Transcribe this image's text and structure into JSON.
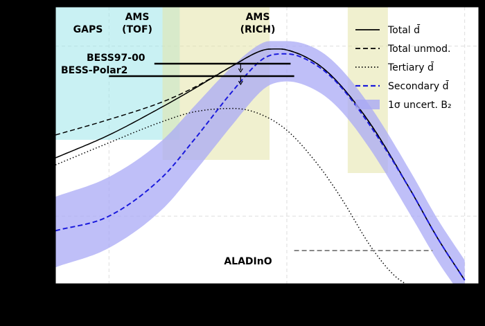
{
  "chart_data": {
    "type": "line",
    "title": "",
    "xlabel": "",
    "ylabel": "",
    "xscale": "log",
    "yscale": "log",
    "grid": true,
    "legend_placement": "top-right",
    "series": [
      {
        "name": "Total d̄",
        "style": "solid",
        "color": "#000000",
        "x": [
          0.05,
          0.1,
          0.2,
          0.3,
          0.5,
          0.7,
          0.8,
          1.0,
          1.5,
          2,
          3,
          5,
          7,
          10
        ],
        "y": [
          0.22,
          0.3,
          0.44,
          0.56,
          0.77,
          0.93,
          0.96,
          0.95,
          0.78,
          0.59,
          0.34,
          0.14,
          0.075,
          0.042
        ]
      },
      {
        "name": "Total unmod.",
        "style": "dashed",
        "color": "#000000",
        "x": [
          0.05,
          0.1,
          0.2,
          0.3,
          0.5,
          0.7,
          0.8,
          1.0,
          1.5,
          2,
          3,
          5,
          7,
          10
        ],
        "y": [
          0.3,
          0.37,
          0.47,
          0.57,
          0.77,
          0.93,
          0.96,
          0.95,
          0.78,
          0.59,
          0.34,
          0.14,
          0.075,
          0.042
        ]
      },
      {
        "name": "Tertiary d̄",
        "style": "dotted",
        "color": "#000000",
        "x": [
          0.05,
          0.1,
          0.2,
          0.3,
          0.5,
          0.7,
          1.0,
          1.5,
          2,
          3,
          4,
          5
        ],
        "y": [
          0.2,
          0.27,
          0.36,
          0.41,
          0.43,
          0.4,
          0.32,
          0.2,
          0.13,
          0.065,
          0.045,
          0.038
        ]
      },
      {
        "name": "Secondary d̄",
        "style": "dashed",
        "color": "#1a1adc",
        "x": [
          0.05,
          0.1,
          0.2,
          0.3,
          0.5,
          0.7,
          0.8,
          1.0,
          1.5,
          2,
          3,
          5,
          7,
          10
        ],
        "y": [
          0.082,
          0.1,
          0.17,
          0.28,
          0.55,
          0.81,
          0.88,
          0.9,
          0.76,
          0.58,
          0.33,
          0.14,
          0.075,
          0.042
        ]
      }
    ],
    "band": {
      "name": "1σ uncert. B₂",
      "color": "#a9a9f5",
      "x": [
        0.05,
        0.1,
        0.2,
        0.3,
        0.5,
        0.7,
        0.8,
        1.0,
        1.5,
        2,
        3,
        5,
        7,
        10
      ],
      "lower": [
        0.05,
        0.065,
        0.11,
        0.18,
        0.35,
        0.53,
        0.59,
        0.62,
        0.54,
        0.42,
        0.24,
        0.1,
        0.055,
        0.032
      ],
      "upper": [
        0.13,
        0.17,
        0.28,
        0.44,
        0.77,
        1.02,
        1.07,
        1.07,
        0.95,
        0.74,
        0.43,
        0.18,
        0.097,
        0.055
      ]
    },
    "regions": [
      {
        "label": "GAPS",
        "color": "#9ce6ea",
        "xmin": 0.05,
        "xmax": 0.25
      },
      {
        "label": "AMS\n(TOF)",
        "color": "#e4e4a8",
        "xmin": 0.2,
        "xmax": 0.8
      },
      {
        "label": "AMS\n(RICH)",
        "color": "#e4e4a8",
        "xmin": 2.2,
        "xmax": 3.7
      }
    ],
    "limits": [
      {
        "label": "BESS97-00",
        "xmin": 0.18,
        "xmax": 1.05,
        "arrow_x": 0.55
      },
      {
        "label": "BESS-Polar2",
        "xmin": 0.1,
        "xmax": 1.1,
        "arrow_x": 0.55
      }
    ],
    "annotation": {
      "label": "ALADInO",
      "xmin": 1.1,
      "xmax": 6.6
    }
  }
}
